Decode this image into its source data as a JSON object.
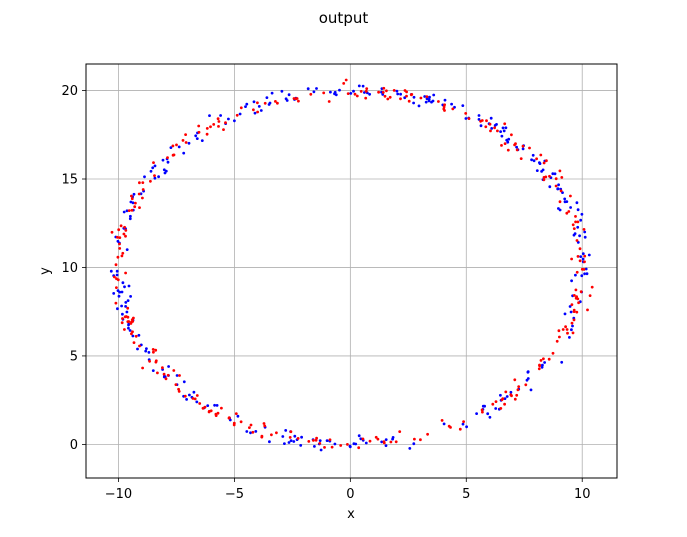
{
  "chart_data": {
    "type": "scatter",
    "title": "output",
    "xlabel": "x",
    "ylabel": "y",
    "xlim": [
      -11.4,
      11.5
    ],
    "ylim": [
      -1.9,
      21.5
    ],
    "xticks": [
      -10,
      -5,
      0,
      5,
      10
    ],
    "yticks": [
      0,
      5,
      10,
      15,
      20
    ],
    "xtick_labels": [
      "−10",
      "−5",
      "0",
      "5",
      "10"
    ],
    "ytick_labels": [
      "0",
      "5",
      "10",
      "15",
      "20"
    ],
    "grid": true,
    "legend": "none",
    "shape": "noisy circle, center (0, 10), radius 10",
    "points_per_series": 300,
    "series": [
      {
        "color": "#0000ff",
        "seed": 7
      },
      {
        "color": "#ff0000",
        "seed": 13
      }
    ]
  }
}
